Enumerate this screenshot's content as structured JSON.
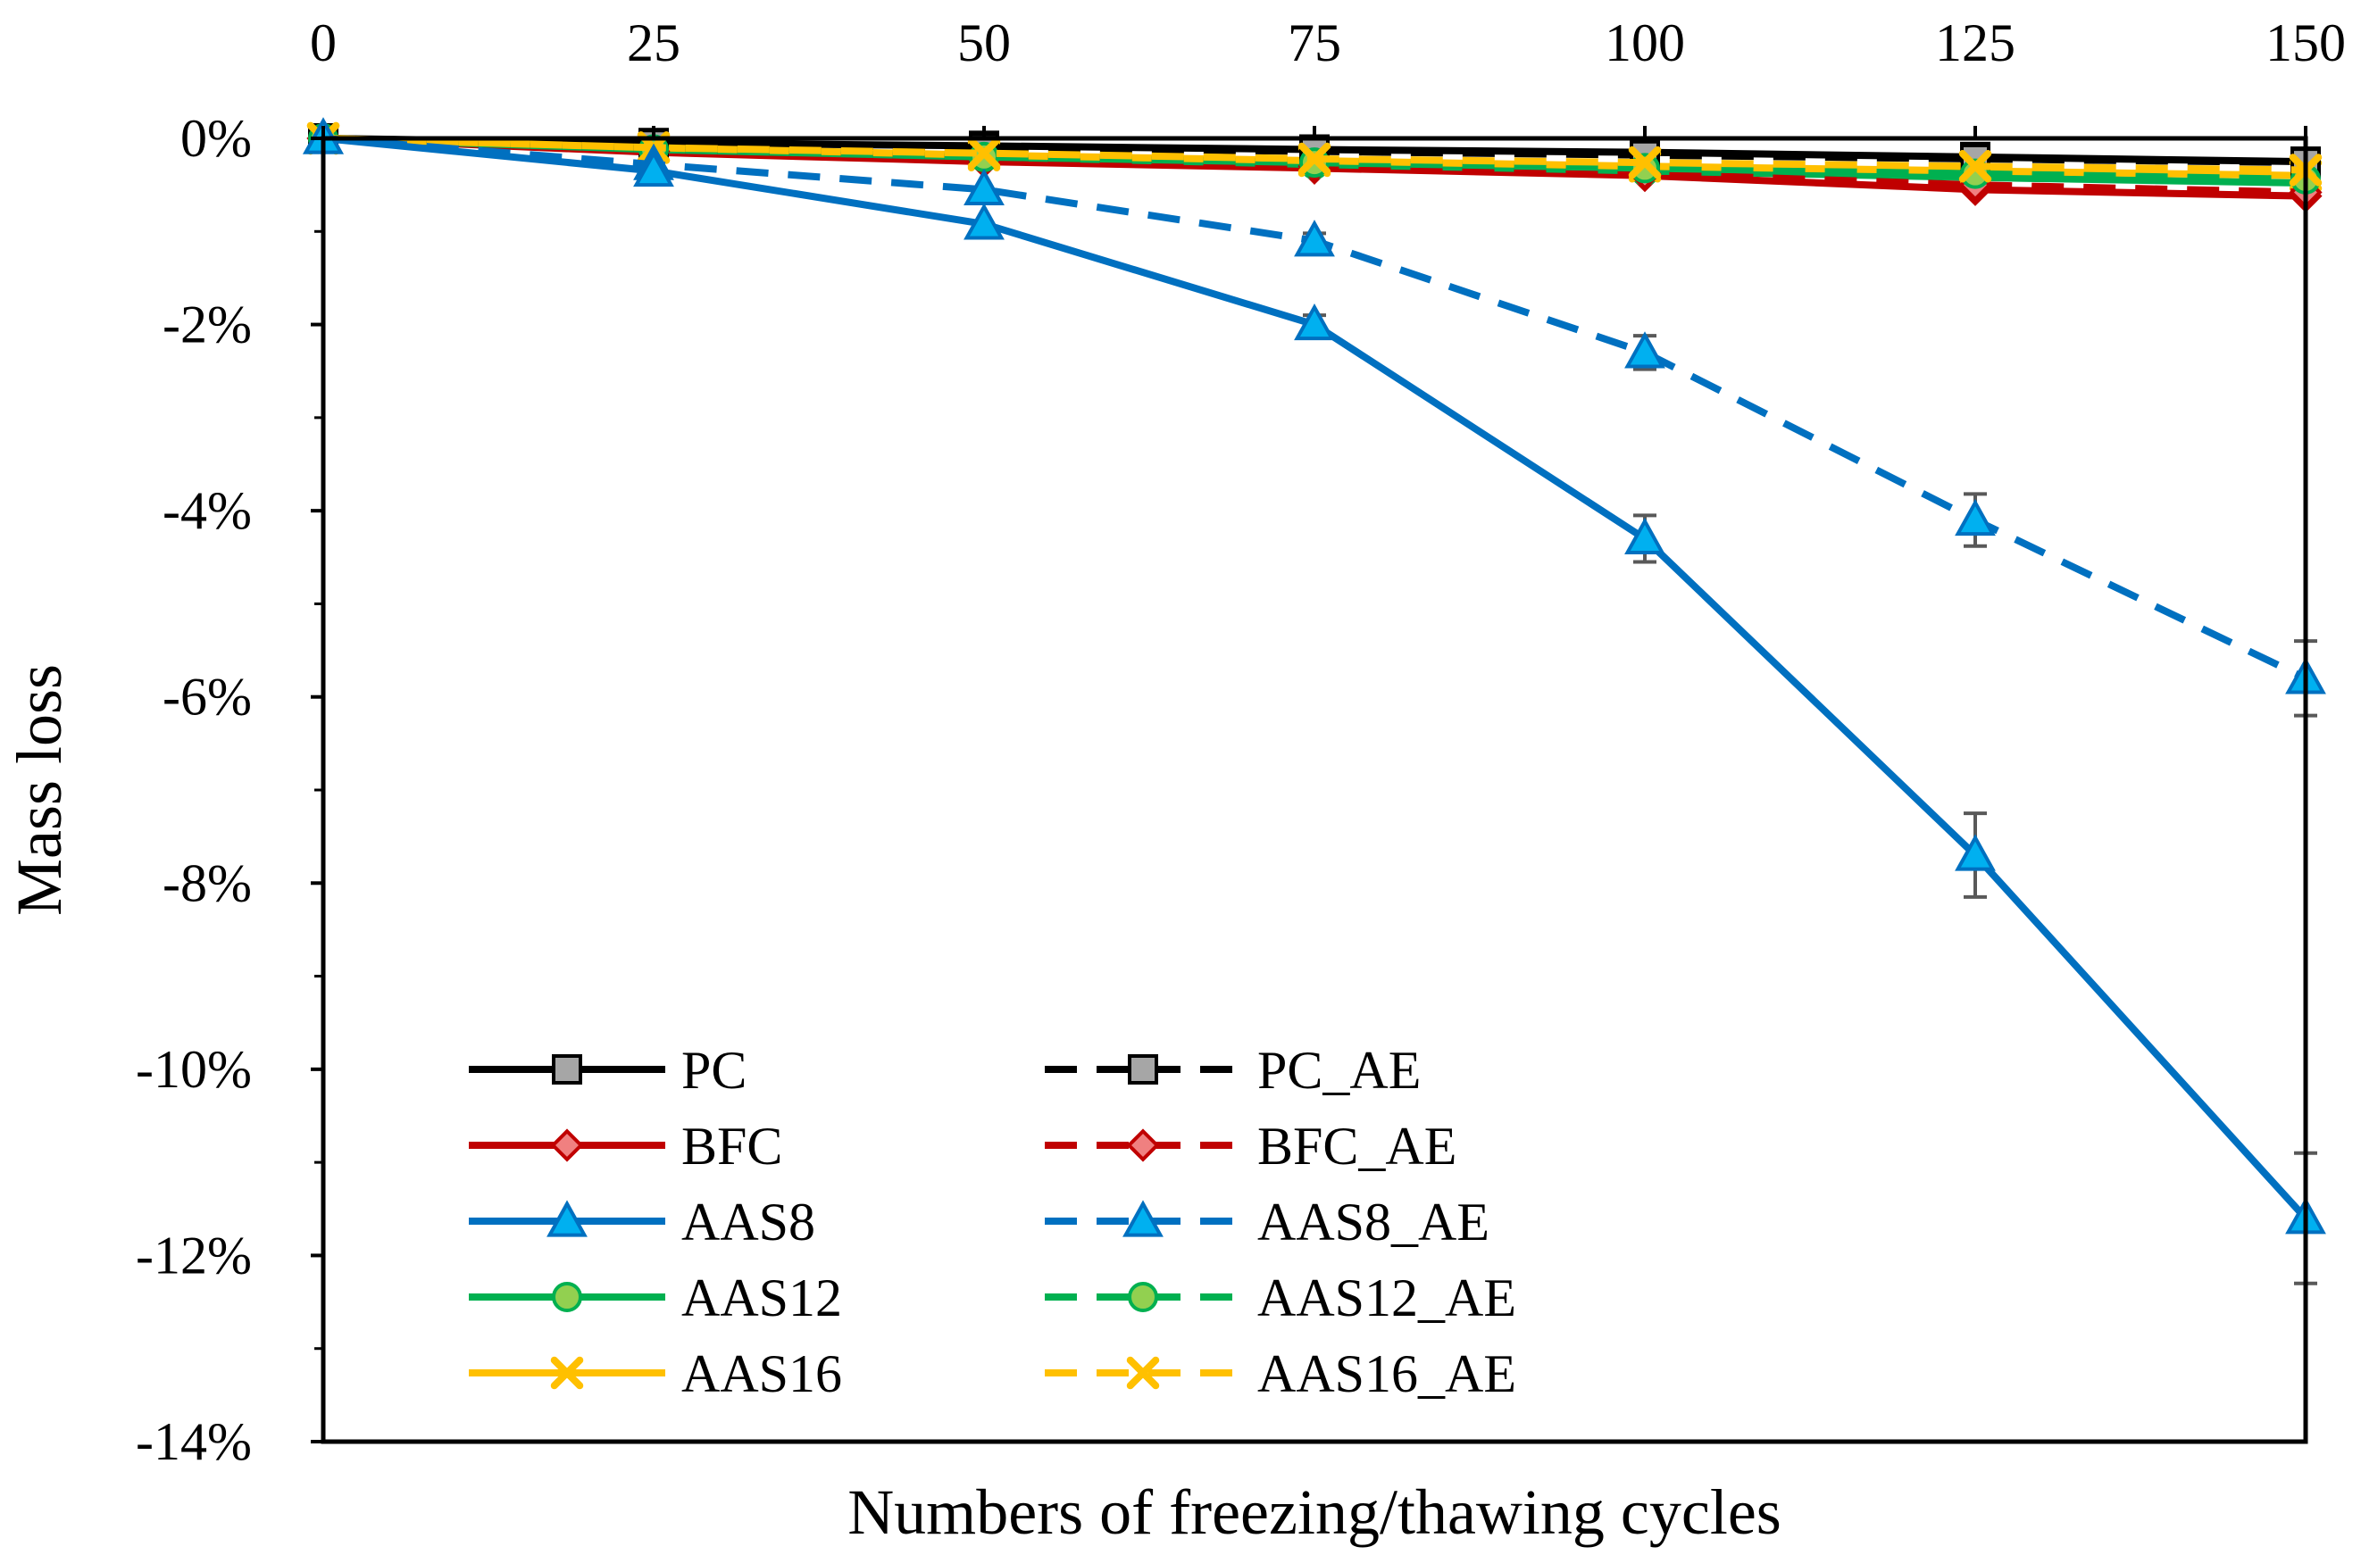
{
  "chart_data": {
    "type": "line",
    "title": "",
    "xlabel": "Numbers of freezing/thawing cycles",
    "ylabel": "Mass loss",
    "x": [
      0,
      25,
      50,
      75,
      100,
      125,
      150
    ],
    "xticks": [
      0,
      25,
      50,
      75,
      100,
      125,
      150
    ],
    "xtick_labels": [
      "0",
      "25",
      "50",
      "75",
      "100",
      "125",
      "150"
    ],
    "xaxis_position": "top",
    "xlim": [
      0,
      150
    ],
    "yticks": [
      0,
      -2,
      -4,
      -6,
      -8,
      -10,
      -12,
      -14
    ],
    "ytick_labels": [
      "0%",
      "-2%",
      "-4%",
      "-6%",
      "-8%",
      "-10%",
      "-12%",
      "-14%"
    ],
    "ylim": [
      -14,
      0
    ],
    "y_unit": "%",
    "grid": false,
    "legend_position": "bottom-left",
    "series": [
      {
        "name": "PC",
        "color": "#000000",
        "dash": false,
        "marker": "square",
        "marker_fill": "#a6a6a6",
        "values": [
          0,
          -0.05,
          -0.08,
          -0.12,
          -0.15,
          -0.2,
          -0.25
        ],
        "errors": [
          0,
          0,
          0,
          0,
          0,
          0,
          0
        ]
      },
      {
        "name": "BFC",
        "color": "#c00000",
        "dash": false,
        "marker": "diamond",
        "marker_fill": "#f08080",
        "values": [
          0,
          -0.15,
          -0.25,
          -0.32,
          -0.4,
          -0.55,
          -0.62
        ],
        "errors": [
          0,
          0,
          0,
          0,
          0,
          0,
          0
        ]
      },
      {
        "name": "AAS8",
        "color": "#0070c0",
        "dash": false,
        "marker": "triangle",
        "marker_fill": "#00b0f0",
        "values": [
          0,
          -0.35,
          -0.92,
          -2.0,
          -4.3,
          -7.7,
          -11.6
        ],
        "errors": [
          0,
          0,
          0,
          0.1,
          0.25,
          0.45,
          0.7
        ]
      },
      {
        "name": "AAS12",
        "color": "#00b050",
        "dash": false,
        "marker": "circle",
        "marker_fill": "#92d050",
        "values": [
          0,
          -0.12,
          -0.2,
          -0.28,
          -0.35,
          -0.42,
          -0.48
        ],
        "errors": [
          0,
          0,
          0,
          0,
          0,
          0,
          0
        ]
      },
      {
        "name": "AAS16",
        "color": "#ffc000",
        "dash": false,
        "marker": "x",
        "marker_fill": "#ffc000",
        "values": [
          0,
          -0.1,
          -0.18,
          -0.24,
          -0.3,
          -0.35,
          -0.4
        ],
        "errors": [
          0,
          0,
          0,
          0,
          0,
          0,
          0
        ]
      },
      {
        "name": "PC_AE",
        "color": "#000000",
        "dash": true,
        "marker": "square",
        "marker_fill": "#a6a6a6",
        "values": [
          0,
          -0.06,
          -0.1,
          -0.14,
          -0.18,
          -0.22,
          -0.26
        ],
        "errors": [
          0,
          0,
          0,
          0,
          0,
          0,
          0
        ]
      },
      {
        "name": "BFC_AE",
        "color": "#c00000",
        "dash": true,
        "marker": "diamond",
        "marker_fill": "#f08080",
        "values": [
          0,
          -0.14,
          -0.22,
          -0.3,
          -0.38,
          -0.5,
          -0.58
        ],
        "errors": [
          0,
          0,
          0,
          0,
          0,
          0,
          0
        ]
      },
      {
        "name": "AAS8_AE",
        "color": "#0070c0",
        "dash": true,
        "marker": "triangle",
        "marker_fill": "#00b0f0",
        "values": [
          0,
          -0.28,
          -0.55,
          -1.1,
          -2.3,
          -4.1,
          -5.8
        ],
        "errors": [
          0,
          0,
          0,
          0.08,
          0.18,
          0.28,
          0.4
        ]
      },
      {
        "name": "AAS12_AE",
        "color": "#00b050",
        "dash": true,
        "marker": "circle",
        "marker_fill": "#92d050",
        "values": [
          0,
          -0.12,
          -0.2,
          -0.26,
          -0.32,
          -0.38,
          -0.44
        ],
        "errors": [
          0,
          0,
          0,
          0,
          0,
          0,
          0
        ]
      },
      {
        "name": "AAS16_AE",
        "color": "#ffc000",
        "dash": true,
        "marker": "x",
        "marker_fill": "#ffc000",
        "values": [
          0,
          -0.1,
          -0.16,
          -0.22,
          -0.26,
          -0.3,
          -0.34
        ],
        "errors": [
          0,
          0,
          0,
          0,
          0,
          0,
          0
        ]
      }
    ]
  }
}
